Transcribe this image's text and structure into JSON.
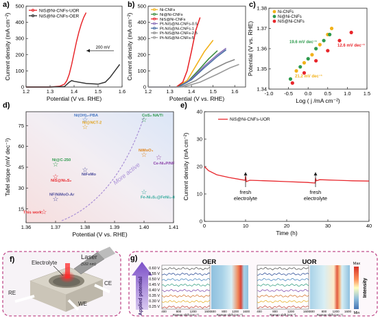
{
  "chart_data": [
    {
      "panel": "a)",
      "type": "line",
      "xlabel": "Potential (V vs. RHE)",
      "ylabel": "Current density (mA cm⁻²)",
      "xlim": [
        1.2,
        1.6
      ],
      "ylim": [
        0,
        500
      ],
      "xticks": [
        "1.2",
        "1.3",
        "1.4",
        "1.5",
        "1.6"
      ],
      "yticks": [
        "0",
        "100",
        "200",
        "300",
        "400",
        "500"
      ],
      "legend": "top-left",
      "annotation": "200 mV",
      "series": [
        {
          "name": "NiS@Ni-CNFs-UOR",
          "color": "#e8262b",
          "x": [
            1.2,
            1.3,
            1.34,
            1.36,
            1.37,
            1.38,
            1.39,
            1.4,
            1.41,
            1.42,
            1.43,
            1.44,
            1.45
          ],
          "y": [
            0,
            0,
            5,
            18,
            40,
            80,
            140,
            210,
            280,
            340,
            390,
            430,
            460
          ]
        },
        {
          "name": "NiS@Ni-CNFs-OER",
          "color": "#333333",
          "x": [
            1.2,
            1.3,
            1.36,
            1.38,
            1.39,
            1.4,
            1.45,
            1.5,
            1.53,
            1.55,
            1.57,
            1.59
          ],
          "y": [
            0,
            0,
            3,
            30,
            40,
            35,
            22,
            18,
            30,
            60,
            100,
            140
          ]
        }
      ]
    },
    {
      "panel": "b)",
      "type": "line",
      "xlabel": "Potential (V vs. RHE)",
      "ylabel": "Current density (mA cm⁻²)",
      "xlim": [
        1.2,
        1.65
      ],
      "ylim": [
        0,
        500
      ],
      "xticks": [
        "1.2",
        "1.3",
        "1.4",
        "1.5",
        "1.6"
      ],
      "yticks": [
        "0",
        "100",
        "200",
        "300",
        "400",
        "500"
      ],
      "legend": "top-left",
      "series": [
        {
          "name": "Ni-CNFs",
          "color": "#f2b21b",
          "x": [
            1.2,
            1.33,
            1.38,
            1.42,
            1.46,
            1.5
          ],
          "y": [
            0,
            0,
            40,
            130,
            220,
            290
          ]
        },
        {
          "name": "Ni@Ni-CNFs",
          "color": "#3e8e41",
          "x": [
            1.2,
            1.33,
            1.38,
            1.43,
            1.48,
            1.52
          ],
          "y": [
            0,
            0,
            30,
            100,
            175,
            225
          ]
        },
        {
          "name": "NiS@Ni-CNFs",
          "color": "#e8262b",
          "x": [
            1.2,
            1.33,
            1.36,
            1.38,
            1.4,
            1.42,
            1.44
          ],
          "y": [
            0,
            0,
            30,
            100,
            220,
            350,
            430
          ]
        },
        {
          "name": "Pt-NiS@Ni-CNFs-0.5",
          "color": "#8a6fb8",
          "x": [
            1.2,
            1.34,
            1.4,
            1.46,
            1.52,
            1.56
          ],
          "y": [
            0,
            0,
            50,
            130,
            200,
            240
          ]
        },
        {
          "name": "Pt-NiS@Ni-CNFs-1",
          "color": "#4a6fa5",
          "x": [
            1.2,
            1.34,
            1.4,
            1.46,
            1.52,
            1.56
          ],
          "y": [
            0,
            0,
            45,
            120,
            190,
            230
          ]
        },
        {
          "name": "Pt-NiS@Ni-CNFs-2.5",
          "color": "#888888",
          "x": [
            1.2,
            1.35,
            1.42,
            1.5,
            1.56,
            1.6
          ],
          "y": [
            0,
            0,
            40,
            110,
            150,
            170
          ]
        },
        {
          "name": "Pt-NiS@Ni-CNFs-5",
          "color": "#999999",
          "x": [
            1.2,
            1.36,
            1.44,
            1.52,
            1.58,
            1.62
          ],
          "y": [
            0,
            0,
            30,
            80,
            120,
            140
          ]
        }
      ]
    },
    {
      "panel": "c)",
      "type": "scatter",
      "xlabel": "Log ( j /mA cm⁻²)",
      "ylabel": "Potential (V vs. RHE)",
      "xlim": [
        -1.0,
        1.5
      ],
      "ylim": [
        1.34,
        1.38
      ],
      "xticks": [
        "-1.0",
        "-0.5",
        "0.0",
        "0.5",
        "1.0",
        "1.5"
      ],
      "yticks": [
        "1.34",
        "1.35",
        "1.36",
        "1.37",
        "1.38"
      ],
      "legend": "top-left",
      "series": [
        {
          "name": "Ni-CNFs",
          "color": "#f2b21b",
          "x": [
            -0.3,
            -0.1,
            0.1,
            0.3,
            0.5,
            0.6
          ],
          "y": [
            1.349,
            1.353,
            1.357,
            1.362,
            1.367,
            1.37
          ]
        },
        {
          "name": "Ni@Ni-CNFs",
          "color": "#2e9a4d",
          "x": [
            -0.45,
            -0.2,
            0.0,
            0.2,
            0.4,
            0.55
          ],
          "y": [
            1.345,
            1.351,
            1.355,
            1.36,
            1.364,
            1.367
          ]
        },
        {
          "name": "NiS@Ni-CNFs",
          "color": "#e8262b",
          "x": [
            -0.4,
            -0.1,
            0.2,
            0.5,
            0.8,
            1.1
          ],
          "y": [
            1.343,
            1.348,
            1.354,
            1.359,
            1.364,
            1.368
          ]
        }
      ],
      "annotations": [
        "19.6 mV dec⁻¹",
        "12.6 mV dec⁻¹",
        "21.2 mV dec⁻¹"
      ]
    },
    {
      "panel": "d)",
      "type": "scatter",
      "xlabel": "Potential (V vs. RHE)",
      "ylabel": "Tafel slope (mV dec⁻¹)",
      "xlim": [
        1.36,
        1.41
      ],
      "ylim": [
        5,
        85
      ],
      "xticks": [
        "1.36",
        "1.37",
        "1.38",
        "1.39",
        "1.40",
        "1.41"
      ],
      "yticks": [
        "15",
        "30",
        "45",
        "60",
        "75"
      ],
      "annotation": "More active",
      "points": [
        {
          "label": "Ni(OH)₂-PBA",
          "x": 1.38,
          "y": 79,
          "color": "#4a78c2"
        },
        {
          "label": "Ni@NCT-2",
          "x": 1.38,
          "y": 74,
          "color": "#e0a21a"
        },
        {
          "label": "CoS₂ NA/Ti",
          "x": 1.4,
          "y": 79,
          "color": "#2e9a4d"
        },
        {
          "label": "Ni@C-250",
          "x": 1.37,
          "y": 47,
          "color": "#2e9a4d"
        },
        {
          "label": "NiS@Ni₃S₂",
          "x": 1.37,
          "y": 38,
          "color": "#e8262b"
        },
        {
          "label": "NiFeMo",
          "x": 1.38,
          "y": 43,
          "color": "#4a4a9a"
        },
        {
          "label": "NiMoO₄",
          "x": 1.4,
          "y": 54,
          "color": "#e0841a"
        },
        {
          "label": "Ce-Ni₃P/NF",
          "x": 1.405,
          "y": 52,
          "color": "#8a3fa8"
        },
        {
          "label": "NF/NiMoO-Ar",
          "x": 1.37,
          "y": 22,
          "color": "#4a4a9a"
        },
        {
          "label": "Fe-Ni₃S₂@FeNi₃-8",
          "x": 1.4,
          "y": 27,
          "color": "#2ea89a"
        },
        {
          "label": "This work",
          "x": 1.366,
          "y": 12.6,
          "color": "#e8262b"
        }
      ]
    },
    {
      "panel": "e)",
      "type": "line",
      "xlabel": "Time (h)",
      "ylabel": "Current density (mA cm⁻²)",
      "xlim": [
        0,
        40
      ],
      "ylim": [
        0,
        40
      ],
      "xticks": [
        "0",
        "10",
        "20",
        "30",
        "40"
      ],
      "yticks": [
        "0",
        "10",
        "20",
        "30",
        "40"
      ],
      "legend": "top-left",
      "series": [
        {
          "name": "NiS@Ni-CNFs-UOR",
          "color": "#e8262b",
          "x": [
            0,
            1,
            3,
            6,
            9,
            9.9,
            10,
            10.2,
            11,
            15,
            20,
            25,
            26.9,
            27,
            27.2,
            28,
            32,
            36,
            40
          ],
          "y": [
            20,
            18.5,
            17,
            16,
            15.2,
            15,
            16.5,
            14.5,
            15,
            14.8,
            14.5,
            14.2,
            14,
            15.8,
            14.8,
            15.2,
            15,
            14.8,
            14.7
          ]
        }
      ],
      "annotations": [
        "fresh\nelectrolyte",
        "fresh\nelectrolyte"
      ]
    },
    {
      "panel": "g)",
      "type": "heatmap",
      "titles": [
        "OER",
        "UOR"
      ],
      "ylabel": "Applied potential",
      "ytick_labels": [
        "0.60 V",
        "0.55 V",
        "0.50 V",
        "0.45 V",
        "0.40 V",
        "0.35 V",
        "0.30 V",
        "0.25 V"
      ],
      "xlabel": "Raman shift (cm⁻¹)",
      "xticks": [
        "400",
        "800",
        "1200",
        "1600"
      ],
      "colorbar": {
        "label": "Intensity",
        "max": "Max",
        "min": "Min"
      }
    }
  ],
  "labels": {
    "a": "a)",
    "b": "b)",
    "c": "c)",
    "d": "d)",
    "e": "e)",
    "f": "f)",
    "g": "g)",
    "laser": "Laser",
    "laser_nm": "(532 nm)",
    "electrolyte": "Electrolyte",
    "ce": "CE",
    "re": "RE",
    "we": "WE",
    "this_work": "This work"
  }
}
